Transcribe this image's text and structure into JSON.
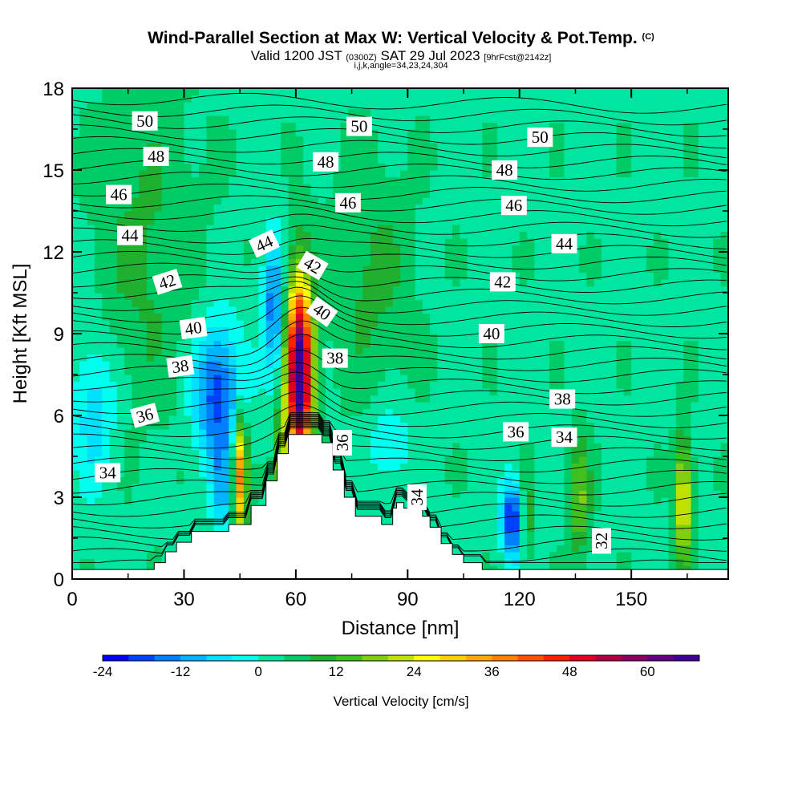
{
  "title": {
    "main": "Wind-Parallel Section at Max W: Vertical Velocity & Pot.Temp.",
    "copyright": "(C)",
    "valid_prefix": "Valid 1200 JST",
    "valid_z": "(0300Z)",
    "valid_date": "SAT 29 Jul 2023",
    "forecast": "[9hrFcst@2142z]",
    "indices": "i,j,k,angle=34,23,24,304"
  },
  "chart_data": {
    "type": "heatmap",
    "xlabel": "Distance [nm]",
    "ylabel": "Height [Kft MSL]",
    "xlim": [
      0,
      176
    ],
    "ylim": [
      0,
      18
    ],
    "x_ticks": [
      "0",
      "30",
      "60",
      "90",
      "120",
      "150"
    ],
    "x_tick_values": [
      0,
      30,
      60,
      90,
      120,
      150
    ],
    "y_ticks": [
      "0",
      "3",
      "6",
      "9",
      "12",
      "15",
      "18"
    ],
    "y_tick_values": [
      0,
      3,
      6,
      9,
      12,
      15,
      18
    ],
    "terrain": [
      [
        0,
        0.35
      ],
      [
        22,
        0.35
      ],
      [
        22,
        0.6
      ],
      [
        25,
        0.6
      ],
      [
        25,
        1.0
      ],
      [
        28,
        1.0
      ],
      [
        28,
        1.35
      ],
      [
        32,
        1.35
      ],
      [
        32,
        1.75
      ],
      [
        42,
        1.75
      ],
      [
        42,
        2.0
      ],
      [
        48,
        2.0
      ],
      [
        48,
        2.7
      ],
      [
        52,
        2.7
      ],
      [
        52,
        3.6
      ],
      [
        55,
        3.6
      ],
      [
        55,
        4.6
      ],
      [
        58,
        4.6
      ],
      [
        58,
        5.3
      ],
      [
        67,
        5.3
      ],
      [
        67,
        5.0
      ],
      [
        70,
        5.0
      ],
      [
        70,
        4.0
      ],
      [
        73,
        4.0
      ],
      [
        73,
        3.0
      ],
      [
        76,
        3.0
      ],
      [
        76,
        2.3
      ],
      [
        83,
        2.3
      ],
      [
        83,
        2.0
      ],
      [
        86,
        2.0
      ],
      [
        86,
        2.6
      ],
      [
        87,
        2.6
      ],
      [
        87,
        2.8
      ],
      [
        89,
        2.8
      ],
      [
        89,
        2.6
      ],
      [
        94,
        2.6
      ],
      [
        94,
        2.3
      ],
      [
        96,
        2.3
      ],
      [
        96,
        1.9
      ],
      [
        99,
        1.9
      ],
      [
        99,
        1.3
      ],
      [
        102,
        1.3
      ],
      [
        102,
        0.9
      ],
      [
        105,
        0.9
      ],
      [
        105,
        0.6
      ],
      [
        110,
        0.6
      ],
      [
        110,
        0.35
      ],
      [
        176,
        0.35
      ]
    ],
    "vertical_velocity_cm_s": {
      "description_units": "cm/s",
      "background": 3,
      "features": [
        {
          "x": 61,
          "y": 7.5,
          "sx": 2.4,
          "sy": 2.4,
          "value": 68
        },
        {
          "x": 45,
          "y": 3.8,
          "sx": 1.3,
          "sy": 1.5,
          "value": 36
        },
        {
          "x": 56,
          "y": 4.2,
          "sx": 1.2,
          "sy": 1.3,
          "value": 18
        },
        {
          "x": 39,
          "y": 6.8,
          "sx": 4.5,
          "sy": 1.8,
          "value": -22
        },
        {
          "x": 54,
          "y": 10.0,
          "sx": 2.0,
          "sy": 1.8,
          "value": -18
        },
        {
          "x": 118,
          "y": 2.2,
          "sx": 2.0,
          "sy": 1.0,
          "value": -24
        },
        {
          "x": 164,
          "y": 2.8,
          "sx": 1.6,
          "sy": 1.6,
          "value": 24
        },
        {
          "x": 136,
          "y": 3.0,
          "sx": 2.0,
          "sy": 1.5,
          "value": 14
        },
        {
          "x": 122,
          "y": 2.2,
          "sx": 1.0,
          "sy": 1.0,
          "value": 12
        },
        {
          "x": 6,
          "y": 6.2,
          "sx": 4.0,
          "sy": 2.0,
          "value": -10
        },
        {
          "x": 85,
          "y": 5.0,
          "sx": 4.0,
          "sy": 1.0,
          "value": -8
        },
        {
          "x": 40,
          "y": 3.2,
          "sx": 2.0,
          "sy": 1.2,
          "value": -10
        },
        {
          "x": 20,
          "y": 12.0,
          "sx": 10.0,
          "sy": 4.0,
          "value": 6
        },
        {
          "x": 80,
          "y": 11.0,
          "sx": 8.0,
          "sy": 3.0,
          "value": 6
        }
      ]
    },
    "potential_temperature_labels": [
      {
        "text": "50",
        "x": 19.5,
        "y": 16.8,
        "angle": 0
      },
      {
        "text": "50",
        "x": 77,
        "y": 16.6,
        "angle": 0
      },
      {
        "text": "50",
        "x": 125.5,
        "y": 16.2,
        "angle": 0
      },
      {
        "text": "48",
        "x": 22.5,
        "y": 15.5,
        "angle": 0
      },
      {
        "text": "48",
        "x": 68,
        "y": 15.3,
        "angle": 0
      },
      {
        "text": "48",
        "x": 116,
        "y": 15.0,
        "angle": 0
      },
      {
        "text": "46",
        "x": 12.5,
        "y": 14.1,
        "angle": 0
      },
      {
        "text": "46",
        "x": 74,
        "y": 13.8,
        "angle": 0
      },
      {
        "text": "46",
        "x": 118.5,
        "y": 13.7,
        "angle": 0
      },
      {
        "text": "44",
        "x": 15.5,
        "y": 12.6,
        "angle": 0
      },
      {
        "text": "44",
        "x": 51.5,
        "y": 12.3,
        "angle": -25
      },
      {
        "text": "44",
        "x": 132,
        "y": 12.3,
        "angle": 0
      },
      {
        "text": "42",
        "x": 25.5,
        "y": 10.9,
        "angle": -18
      },
      {
        "text": "42",
        "x": 64.5,
        "y": 11.5,
        "angle": 30
      },
      {
        "text": "42",
        "x": 115.5,
        "y": 10.9,
        "angle": 0
      },
      {
        "text": "40",
        "x": 32.5,
        "y": 9.2,
        "angle": -8
      },
      {
        "text": "40",
        "x": 67,
        "y": 9.8,
        "angle": 35
      },
      {
        "text": "40",
        "x": 112.5,
        "y": 9.0,
        "angle": 0
      },
      {
        "text": "38",
        "x": 29,
        "y": 7.8,
        "angle": -8
      },
      {
        "text": "38",
        "x": 70.5,
        "y": 8.1,
        "angle": 0
      },
      {
        "text": "38",
        "x": 131.5,
        "y": 6.6,
        "angle": 0
      },
      {
        "text": "36",
        "x": 19.5,
        "y": 6.0,
        "angle": -15
      },
      {
        "text": "36",
        "x": 72.5,
        "y": 5.0,
        "angle": -90
      },
      {
        "text": "36",
        "x": 119,
        "y": 5.4,
        "angle": 0
      },
      {
        "text": "34",
        "x": 9.5,
        "y": 3.9,
        "angle": 0
      },
      {
        "text": "34",
        "x": 92.5,
        "y": 3.0,
        "angle": -90
      },
      {
        "text": "34",
        "x": 132,
        "y": 5.2,
        "angle": 0
      },
      {
        "text": "32",
        "x": 142,
        "y": 1.4,
        "angle": -90
      }
    ]
  },
  "colorbar": {
    "label": "Vertical Velocity [cm/s]",
    "min": -24,
    "max": 68,
    "tick_labels": [
      "-24",
      "-12",
      "0",
      "12",
      "24",
      "36",
      "48",
      "60"
    ],
    "tick_values": [
      -24,
      -12,
      0,
      12,
      24,
      36,
      48,
      60
    ],
    "colors": [
      "#0000ff",
      "#0040ff",
      "#0080ff",
      "#00b4ff",
      "#00e0ff",
      "#00ffee",
      "#00e6a0",
      "#00cc66",
      "#20b030",
      "#40c020",
      "#80d010",
      "#c0e000",
      "#ffff00",
      "#ffd000",
      "#ffa800",
      "#ff8000",
      "#ff5000",
      "#ff2000",
      "#e00020",
      "#b00040",
      "#880060",
      "#600080",
      "#400090"
    ]
  }
}
